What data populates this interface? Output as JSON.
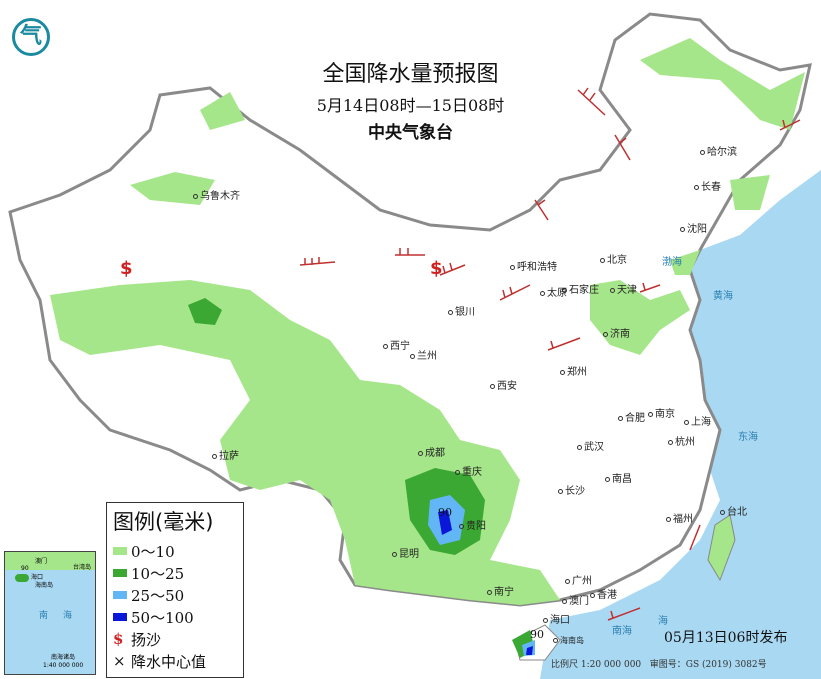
{
  "title": "全国降水量预报图",
  "period": "5月14日08时—15日08时",
  "issuer": "中央气象台",
  "logo_text": "气",
  "legend": {
    "title": "图例(毫米)",
    "items": [
      {
        "label": "0～10",
        "color": "#a6e68a"
      },
      {
        "label": "10～25",
        "color": "#3aa832"
      },
      {
        "label": "25～50",
        "color": "#62b6f5"
      },
      {
        "label": "50～100",
        "color": "#0a17d8"
      }
    ],
    "sand_symbol": "$",
    "sand_label": "扬沙",
    "center_symbol": "×",
    "center_label": "降水中心值"
  },
  "cities": [
    "乌鲁木齐",
    "哈尔滨",
    "长春",
    "沈阳",
    "北京",
    "天津",
    "呼和浩特",
    "石家庄",
    "太原",
    "济南",
    "银川",
    "西宁",
    "兰州",
    "郑州",
    "西安",
    "合肥",
    "南京",
    "上海",
    "杭州",
    "武汉",
    "成都",
    "重庆",
    "长沙",
    "南昌",
    "拉萨",
    "贵阳",
    "福州",
    "台北",
    "昆明",
    "南宁",
    "广州",
    "澳门",
    "香港",
    "海口",
    "海南岛"
  ],
  "seas": [
    "渤海",
    "黄海",
    "东海",
    "南海",
    "海"
  ],
  "precip_centers": [
    "90",
    "90"
  ],
  "inset": {
    "labels": [
      "澳门",
      "台湾岛",
      "海口",
      "海南岛",
      "南",
      "海",
      "南海诸岛"
    ],
    "scale": "1:40 000 000",
    "center_value": "90"
  },
  "published": "05月13日06时发布",
  "scale": "比例尺 1:20 000 000",
  "map_approval": "审图号：GS (2019) 3082号",
  "colors": {
    "sea": "#a9d8f2",
    "land": "#ffffff",
    "border": "#888888",
    "wind_barb": "#c03030"
  }
}
